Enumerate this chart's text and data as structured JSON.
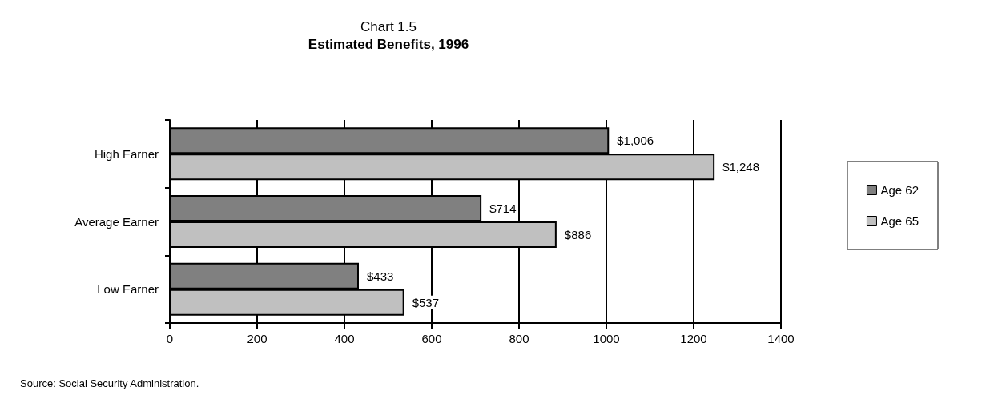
{
  "chart_data": {
    "type": "bar",
    "orientation": "horizontal",
    "title": "Chart 1.5",
    "subtitle": "Estimated Benefits, 1996",
    "categories": [
      "High Earner",
      "Average Earner",
      "Low Earner"
    ],
    "series": [
      {
        "name": "Age 62",
        "color": "#808080",
        "values": [
          1006,
          714,
          433
        ],
        "value_labels": [
          "$1,006",
          "$714",
          "$433"
        ]
      },
      {
        "name": "Age 65",
        "color": "#c0c0c0",
        "values": [
          1248,
          886,
          537
        ],
        "value_labels": [
          "$1,248",
          "$886",
          "$537"
        ]
      }
    ],
    "xlim": [
      0,
      1400
    ],
    "xticks": [
      0,
      200,
      400,
      600,
      800,
      1000,
      1200,
      1400
    ],
    "grid": "x",
    "legend": "right",
    "annotations": [
      "Source: Social Security Administration."
    ]
  }
}
